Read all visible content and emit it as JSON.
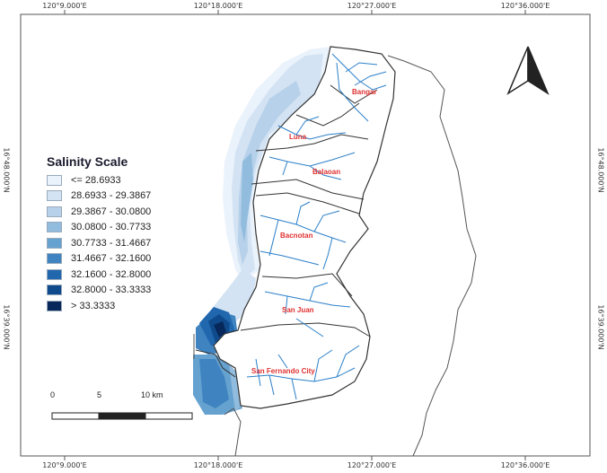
{
  "frame": {
    "top_coords": [
      "120°9.000'E",
      "120°18.000'E",
      "120°27.000'E",
      "120°36.000'E"
    ],
    "bottom_coords": [
      "120°9.000'E",
      "120°18.000'E",
      "120°27.000'E",
      "120°36.000'E"
    ],
    "left_coords": [
      "16°48.000'N",
      "16°39.000'N"
    ],
    "right_coords": [
      "16°48.000'N",
      "16°39.000'N"
    ]
  },
  "legend": {
    "title": "Salinity Scale",
    "classes": [
      {
        "label": "<= 28.6933",
        "color": "#eaf2fb"
      },
      {
        "label": "28.6933 - 29.3867",
        "color": "#d3e3f3"
      },
      {
        "label": "29.3867 - 30.0800",
        "color": "#b7d1ea"
      },
      {
        "label": "30.0800 - 30.7733",
        "color": "#92bcde"
      },
      {
        "label": "30.7733 - 31.4667",
        "color": "#66a2d0"
      },
      {
        "label": "31.4667 - 32.1600",
        "color": "#3f84c1"
      },
      {
        "label": "32.1600 - 32.8000",
        "color": "#2167ae"
      },
      {
        "label": "32.8000 - 33.3333",
        "color": "#0f4b8c"
      },
      {
        "label": "> 33.3333",
        "color": "#08275a"
      }
    ]
  },
  "scalebar": {
    "labels": [
      "0",
      "5",
      "10 km"
    ]
  },
  "municipalities": [
    "Bangar",
    "Luna",
    "Balaoan",
    "Bacnotan",
    "San Juan",
    "San Fernando City"
  ],
  "north_arrow": "north-arrow-icon",
  "colors": {
    "river": "#2a7fc9",
    "label": "#e03030",
    "boundary": "#444444"
  }
}
